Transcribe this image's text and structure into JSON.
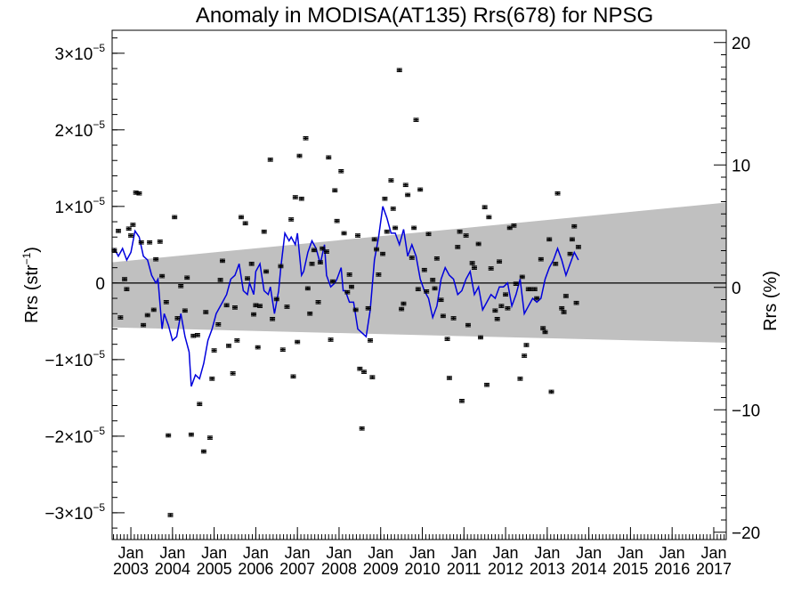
{
  "chart_data": {
    "type": "scatter",
    "title": "Anomaly in MODISA(AT135) Rrs(678) for NPSG",
    "ylabel_left": "Rrs (str",
    "ylabel_left_sup": "−1",
    "ylabel_left_close": ")",
    "ylabel_right": "Rrs (%)",
    "xlabel": "",
    "ylim": [
      -3.35e-05,
      3.3e-05
    ],
    "xlim": [
      2002.55,
      2017.3
    ],
    "right_axis": {
      "ylim": [
        -20.6,
        21.0
      ],
      "ticks": [
        20,
        10,
        0,
        -10,
        -20
      ]
    },
    "y_ticks": [
      {
        "value": 3e-05,
        "label_base": "3×10",
        "label_exp": "−5"
      },
      {
        "value": 2e-05,
        "label_base": "2×10",
        "label_exp": "−5"
      },
      {
        "value": 1e-05,
        "label_base": "1×10",
        "label_exp": "−5"
      },
      {
        "value": 0,
        "label_base": "0",
        "label_exp": ""
      },
      {
        "value": -1e-05,
        "label_base": "−1×10",
        "label_exp": "−5"
      },
      {
        "value": -2e-05,
        "label_base": "−2×10",
        "label_exp": "−5"
      },
      {
        "value": -3e-05,
        "label_base": "−3×10",
        "label_exp": "−5"
      }
    ],
    "x_ticks": [
      {
        "value": 2003.0,
        "month": "Jan",
        "year": "2003"
      },
      {
        "value": 2004.0,
        "month": "Jan",
        "year": "2004"
      },
      {
        "value": 2005.0,
        "month": "Jan",
        "year": "2005"
      },
      {
        "value": 2006.0,
        "month": "Jan",
        "year": "2006"
      },
      {
        "value": 2007.0,
        "month": "Jan",
        "year": "2007"
      },
      {
        "value": 2008.0,
        "month": "Jan",
        "year": "2008"
      },
      {
        "value": 2009.0,
        "month": "Jan",
        "year": "2009"
      },
      {
        "value": 2010.0,
        "month": "Jan",
        "year": "2010"
      },
      {
        "value": 2011.0,
        "month": "Jan",
        "year": "2011"
      },
      {
        "value": 2012.0,
        "month": "Jan",
        "year": "2012"
      },
      {
        "value": 2013.0,
        "month": "Jan",
        "year": "2013"
      },
      {
        "value": 2014.0,
        "month": "Jan",
        "year": "2014"
      },
      {
        "value": 2015.0,
        "month": "Jan",
        "year": "2015"
      },
      {
        "value": 2016.0,
        "month": "Jan",
        "year": "2016"
      },
      {
        "value": 2017.0,
        "month": "Jan",
        "year": "2017"
      }
    ],
    "band": {
      "lower": [
        [
          2002.55,
          -5.8e-06
        ],
        [
          2017.3,
          -7.8e-06
        ]
      ],
      "upper": [
        [
          2002.55,
          2.7e-06
        ],
        [
          2017.3,
          1.05e-05
        ]
      ]
    },
    "zero_line": 0,
    "monthly_anomaly": [
      [
        2002.6,
        4.3e-06
      ],
      [
        2002.7,
        6.8e-06
      ],
      [
        2002.75,
        -4.5e-06
      ],
      [
        2002.85,
        5e-07
      ],
      [
        2002.9,
        -8e-07
      ],
      [
        2002.95,
        7.1e-06
      ],
      [
        2003.0,
        6.2e-06
      ],
      [
        2003.05,
        7.6e-06
      ],
      [
        2003.12,
        1.18e-05
      ],
      [
        2003.2,
        1.17e-05
      ],
      [
        2003.25,
        5.3e-06
      ],
      [
        2003.3,
        -5.5e-06
      ],
      [
        2003.4,
        -4.2e-06
      ],
      [
        2003.45,
        5.3e-06
      ],
      [
        2003.55,
        -3.5e-06
      ],
      [
        2003.6,
        3.1e-06
      ],
      [
        2003.7,
        5.4e-06
      ],
      [
        2003.75,
        9e-07
      ],
      [
        2003.85,
        -2.5e-06
      ],
      [
        2003.9,
        -1.99e-05
      ],
      [
        2003.95,
        -3.03e-05
      ],
      [
        2004.05,
        8.6e-06
      ],
      [
        2004.12,
        -4.6e-06
      ],
      [
        2004.2,
        -4e-07
      ],
      [
        2004.3,
        -3.6e-06
      ],
      [
        2004.35,
        7e-07
      ],
      [
        2004.45,
        -1.98e-05
      ],
      [
        2004.5,
        -6.9e-06
      ],
      [
        2004.6,
        -6.8e-06
      ],
      [
        2004.65,
        -1.58e-05
      ],
      [
        2004.75,
        -2.2e-05
      ],
      [
        2004.8,
        -3.8e-06
      ],
      [
        2004.9,
        -2.02e-05
      ],
      [
        2004.95,
        -1.25e-05
      ],
      [
        2005.0,
        -8.8e-06
      ],
      [
        2005.1,
        -5.4e-06
      ],
      [
        2005.15,
        4e-07
      ],
      [
        2005.2,
        2.9e-06
      ],
      [
        2005.3,
        -2.9e-06
      ],
      [
        2005.35,
        -8.2e-06
      ],
      [
        2005.45,
        -1.18e-05
      ],
      [
        2005.5,
        -3.2e-06
      ],
      [
        2005.55,
        -7.5e-06
      ],
      [
        2005.65,
        8.6e-06
      ],
      [
        2005.75,
        7.8e-06
      ],
      [
        2005.8,
        6e-07
      ],
      [
        2005.9,
        2.5e-06
      ],
      [
        2005.95,
        -4.1e-06
      ],
      [
        2006.0,
        -2.9e-06
      ],
      [
        2006.05,
        -8.4e-06
      ],
      [
        2006.1,
        -3e-06
      ],
      [
        2006.2,
        6.7e-06
      ],
      [
        2006.25,
        1.5e-06
      ],
      [
        2006.35,
        1.61e-05
      ],
      [
        2006.4,
        -4.7e-06
      ],
      [
        2006.5,
        -2.1e-06
      ],
      [
        2006.6,
        2.2e-06
      ],
      [
        2006.65,
        -8.7e-06
      ],
      [
        2006.75,
        -3.1e-06
      ],
      [
        2006.85,
        8.3e-06
      ],
      [
        2006.9,
        -1.22e-05
      ],
      [
        2006.95,
        1.12e-05
      ],
      [
        2007.0,
        -7.7e-06
      ],
      [
        2007.05,
        1.66e-05
      ],
      [
        2007.1,
        1.1e-05
      ],
      [
        2007.2,
        1.89e-05
      ],
      [
        2007.25,
        -7e-07
      ],
      [
        2007.3,
        -4e-06
      ],
      [
        2007.35,
        2.5e-06
      ],
      [
        2007.4,
        4.3e-06
      ],
      [
        2007.5,
        -2.5e-06
      ],
      [
        2007.55,
        2.7e-06
      ],
      [
        2007.6,
        4.5e-06
      ],
      [
        2007.7,
        4.1e-06
      ],
      [
        2007.75,
        1.64e-05
      ],
      [
        2007.8,
        -7.4e-06
      ],
      [
        2007.85,
        2e-07
      ],
      [
        2007.9,
        1.21e-05
      ],
      [
        2007.95,
        8.1e-06
      ],
      [
        2008.05,
        1.46e-05
      ],
      [
        2008.12,
        6.5e-06
      ],
      [
        2008.2,
        -1.2e-06
      ],
      [
        2008.25,
        1.1e-06
      ],
      [
        2008.3,
        -5e-07
      ],
      [
        2008.4,
        -3.5e-06
      ],
      [
        2008.45,
        6.2e-06
      ],
      [
        2008.5,
        -1.12e-05
      ],
      [
        2008.55,
        -1.9e-05
      ],
      [
        2008.6,
        -1.16e-05
      ],
      [
        2008.7,
        -3.3e-06
      ],
      [
        2008.75,
        -7.5e-06
      ],
      [
        2008.8,
        -1.23e-05
      ],
      [
        2008.85,
        5.7e-06
      ],
      [
        2008.9,
        4.4e-06
      ],
      [
        2008.95,
        1.1e-06
      ],
      [
        2009.05,
        3.8e-06
      ],
      [
        2009.1,
        1.1e-05
      ],
      [
        2009.15,
        6.7e-06
      ],
      [
        2009.25,
        1.34e-05
      ],
      [
        2009.3,
        9.7e-06
      ],
      [
        2009.35,
        7.2e-06
      ],
      [
        2009.45,
        2.78e-05
      ],
      [
        2009.5,
        -3.4e-06
      ],
      [
        2009.55,
        -2.7e-06
      ],
      [
        2009.6,
        1.28e-05
      ],
      [
        2009.65,
        1.15e-05
      ],
      [
        2009.75,
        3.3e-06
      ],
      [
        2009.8,
        7.2e-06
      ],
      [
        2009.85,
        2.13e-05
      ],
      [
        2009.9,
        -8e-07
      ],
      [
        2009.95,
        1.22e-05
      ],
      [
        2010.05,
        1.7e-06
      ],
      [
        2010.1,
        -1.1e-06
      ],
      [
        2010.15,
        6.4e-06
      ],
      [
        2010.25,
        4e-07
      ],
      [
        2010.3,
        -7e-07
      ],
      [
        2010.35,
        3.2e-06
      ],
      [
        2010.45,
        -2.2e-06
      ],
      [
        2010.5,
        -4.3e-06
      ],
      [
        2010.6,
        -7.3e-06
      ],
      [
        2010.65,
        -1.24e-05
      ],
      [
        2010.75,
        -4.6e-06
      ],
      [
        2010.85,
        4.7e-06
      ],
      [
        2010.9,
        6.7e-06
      ],
      [
        2010.95,
        -1.54e-05
      ],
      [
        2011.05,
        6.2e-06
      ],
      [
        2011.1,
        -5.5e-06
      ],
      [
        2011.2,
        2.6e-06
      ],
      [
        2011.25,
        2e-06
      ],
      [
        2011.35,
        5.1e-06
      ],
      [
        2011.4,
        -7.1e-06
      ],
      [
        2011.5,
        9.9e-06
      ],
      [
        2011.55,
        -1.33e-05
      ],
      [
        2011.6,
        8.6e-06
      ],
      [
        2011.65,
        1.9e-06
      ],
      [
        2011.75,
        -3.6e-06
      ],
      [
        2011.8,
        -4.7e-06
      ],
      [
        2011.85,
        2.8e-06
      ],
      [
        2011.9,
        -3e-06
      ],
      [
        2012.0,
        -1.5e-06
      ],
      [
        2012.05,
        -3.3e-06
      ],
      [
        2012.1,
        7.2e-06
      ],
      [
        2012.2,
        7.5e-06
      ],
      [
        2012.25,
        -1e-07
      ],
      [
        2012.35,
        -1.25e-05
      ],
      [
        2012.4,
        8e-07
      ],
      [
        2012.45,
        -9.5e-06
      ],
      [
        2012.5,
        -8.1e-06
      ],
      [
        2012.55,
        -8e-07
      ],
      [
        2012.6,
        -8e-07
      ],
      [
        2012.7,
        -8e-07
      ],
      [
        2012.75,
        -2e-06
      ],
      [
        2012.85,
        3.1e-06
      ],
      [
        2012.9,
        -5.9e-06
      ],
      [
        2012.95,
        -6.4e-06
      ],
      [
        2013.05,
        5.7e-06
      ],
      [
        2013.1,
        -1.42e-05
      ],
      [
        2013.2,
        2.5e-06
      ],
      [
        2013.25,
        1.17e-05
      ],
      [
        2013.35,
        -3.3e-06
      ],
      [
        2013.4,
        -3.8e-06
      ],
      [
        2013.45,
        -1.7e-06
      ],
      [
        2013.55,
        3.8e-06
      ],
      [
        2013.6,
        5.7e-06
      ],
      [
        2013.65,
        7.4e-06
      ],
      [
        2013.7,
        -2.6e-06
      ],
      [
        2013.75,
        4.7e-06
      ]
    ],
    "running_mean": [
      [
        2002.6,
        4.5e-06
      ],
      [
        2002.7,
        3.5e-06
      ],
      [
        2002.8,
        4.5e-06
      ],
      [
        2002.9,
        3e-06
      ],
      [
        2003.0,
        4e-06
      ],
      [
        2003.1,
        6.8e-06
      ],
      [
        2003.2,
        6e-06
      ],
      [
        2003.3,
        3.5e-06
      ],
      [
        2003.4,
        3e-06
      ],
      [
        2003.5,
        1e-06
      ],
      [
        2003.6,
        0.0
      ],
      [
        2003.65,
        5e-07
      ],
      [
        2003.75,
        -6e-06
      ],
      [
        2003.8,
        -4e-06
      ],
      [
        2003.9,
        -5.5e-06
      ],
      [
        2004.0,
        -7.5e-06
      ],
      [
        2004.1,
        -7e-06
      ],
      [
        2004.2,
        -4e-06
      ],
      [
        2004.3,
        -7e-06
      ],
      [
        2004.4,
        -9e-06
      ],
      [
        2004.45,
        -1.35e-05
      ],
      [
        2004.55,
        -1.2e-05
      ],
      [
        2004.65,
        -1.25e-05
      ],
      [
        2004.75,
        -1.05e-05
      ],
      [
        2004.85,
        -7.5e-06
      ],
      [
        2004.95,
        -6e-06
      ],
      [
        2005.05,
        -4e-06
      ],
      [
        2005.2,
        -2.5e-06
      ],
      [
        2005.3,
        -1.5e-06
      ],
      [
        2005.4,
        5e-07
      ],
      [
        2005.5,
        1e-06
      ],
      [
        2005.6,
        2.5e-06
      ],
      [
        2005.7,
        -1e-06
      ],
      [
        2005.8,
        -1.5e-06
      ],
      [
        2005.85,
        0.0
      ],
      [
        2005.95,
        -1.5e-06
      ],
      [
        2006.0,
        1.5e-06
      ],
      [
        2006.1,
        2.5e-06
      ],
      [
        2006.2,
        -1e-06
      ],
      [
        2006.3,
        -1.5e-06
      ],
      [
        2006.35,
        -5e-07
      ],
      [
        2006.45,
        -4e-06
      ],
      [
        2006.55,
        -1e-06
      ],
      [
        2006.6,
        2e-06
      ],
      [
        2006.7,
        6.5e-06
      ],
      [
        2006.8,
        5.5e-06
      ],
      [
        2006.85,
        6e-06
      ],
      [
        2006.95,
        5e-06
      ],
      [
        2007.0,
        6.5e-06
      ],
      [
        2007.1,
        1e-06
      ],
      [
        2007.15,
        1.5e-06
      ],
      [
        2007.25,
        4e-06
      ],
      [
        2007.35,
        5.5e-06
      ],
      [
        2007.45,
        4.5e-06
      ],
      [
        2007.55,
        2.5e-06
      ],
      [
        2007.65,
        5e-06
      ],
      [
        2007.7,
        1e-06
      ],
      [
        2007.8,
        -5e-07
      ],
      [
        2007.9,
        0.0
      ],
      [
        2007.95,
        5e-07
      ],
      [
        2008.05,
        2e-06
      ],
      [
        2008.1,
        -1e-06
      ],
      [
        2008.15,
        -1e-06
      ],
      [
        2008.25,
        -2.5e-06
      ],
      [
        2008.35,
        -2.5e-06
      ],
      [
        2008.45,
        -6e-06
      ],
      [
        2008.55,
        -6.5e-06
      ],
      [
        2008.65,
        -7e-06
      ],
      [
        2008.75,
        -3.5e-06
      ],
      [
        2008.85,
        3e-06
      ],
      [
        2008.95,
        6e-06
      ],
      [
        2009.05,
        1e-05
      ],
      [
        2009.15,
        8.5e-06
      ],
      [
        2009.25,
        6.5e-06
      ],
      [
        2009.35,
        6.5e-06
      ],
      [
        2009.45,
        5e-06
      ],
      [
        2009.55,
        7e-06
      ],
      [
        2009.65,
        3.5e-06
      ],
      [
        2009.75,
        5e-06
      ],
      [
        2009.85,
        3.5e-06
      ],
      [
        2009.95,
        5e-07
      ],
      [
        2010.05,
        -1e-06
      ],
      [
        2010.15,
        -2e-06
      ],
      [
        2010.25,
        -4.5e-06
      ],
      [
        2010.35,
        -3e-06
      ],
      [
        2010.45,
        5e-07
      ],
      [
        2010.55,
        2e-06
      ],
      [
        2010.65,
        1e-06
      ],
      [
        2010.75,
        5e-07
      ],
      [
        2010.85,
        -1.5e-06
      ],
      [
        2010.95,
        -1e-06
      ],
      [
        2011.05,
        5e-07
      ],
      [
        2011.15,
        1.5e-06
      ],
      [
        2011.25,
        -1.5e-06
      ],
      [
        2011.35,
        -5e-07
      ],
      [
        2011.45,
        -3.5e-06
      ],
      [
        2011.55,
        -2.5e-06
      ],
      [
        2011.65,
        -1.5e-06
      ],
      [
        2011.75,
        -2e-06
      ],
      [
        2011.85,
        -5e-07
      ],
      [
        2011.95,
        -5e-07
      ],
      [
        2012.05,
        0.0
      ],
      [
        2012.15,
        -3e-06
      ],
      [
        2012.25,
        -1.5e-06
      ],
      [
        2012.35,
        5e-07
      ],
      [
        2012.45,
        -4e-06
      ],
      [
        2012.55,
        -3e-06
      ],
      [
        2012.65,
        -2e-06
      ],
      [
        2012.75,
        -2.5e-06
      ],
      [
        2012.85,
        -2e-06
      ],
      [
        2012.95,
        5e-07
      ],
      [
        2013.05,
        2e-06
      ],
      [
        2013.15,
        3e-06
      ],
      [
        2013.25,
        4.5e-06
      ],
      [
        2013.35,
        3e-06
      ],
      [
        2013.45,
        1e-06
      ],
      [
        2013.55,
        2.5e-06
      ],
      [
        2013.65,
        4e-06
      ],
      [
        2013.75,
        3e-06
      ]
    ],
    "colors": {
      "band": "#c0c0c0",
      "line": "#0000dd",
      "points": "#000000",
      "zero": "#000000"
    },
    "grid": false,
    "legend": "none"
  }
}
